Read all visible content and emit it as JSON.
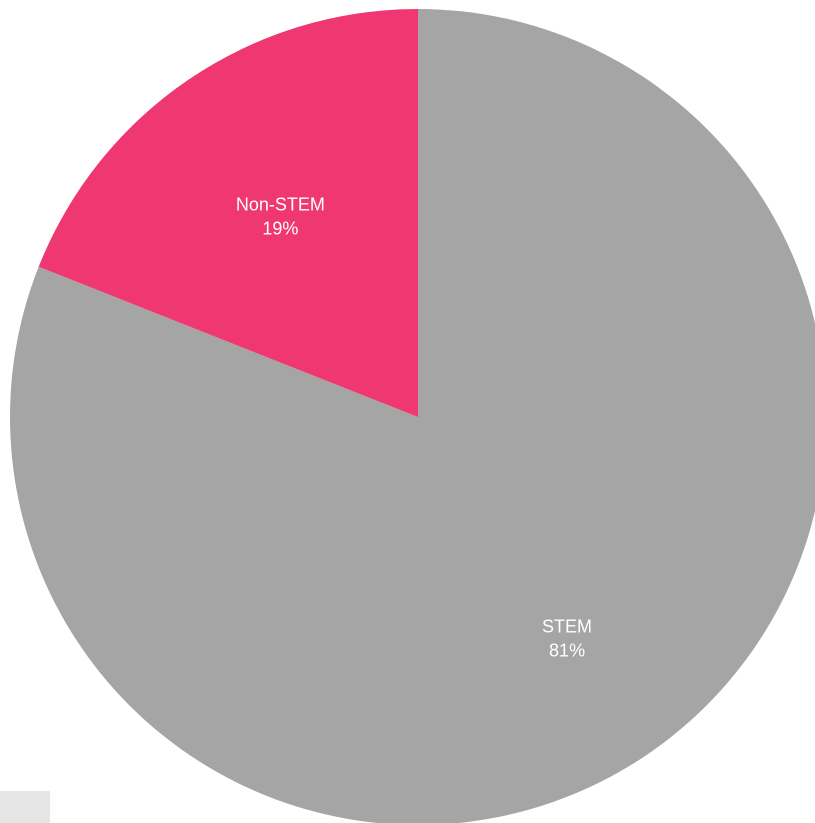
{
  "chart_data": {
    "type": "pie",
    "slices": [
      {
        "label": "STEM",
        "value": 81,
        "display": "81%",
        "color": "#a5a5a5"
      },
      {
        "label": "Non-STEM",
        "value": 19,
        "display": "19%",
        "color": "#ef3872"
      }
    ],
    "start": "12 o'clock",
    "direction": "clockwise",
    "label_color": "#ffffff"
  }
}
